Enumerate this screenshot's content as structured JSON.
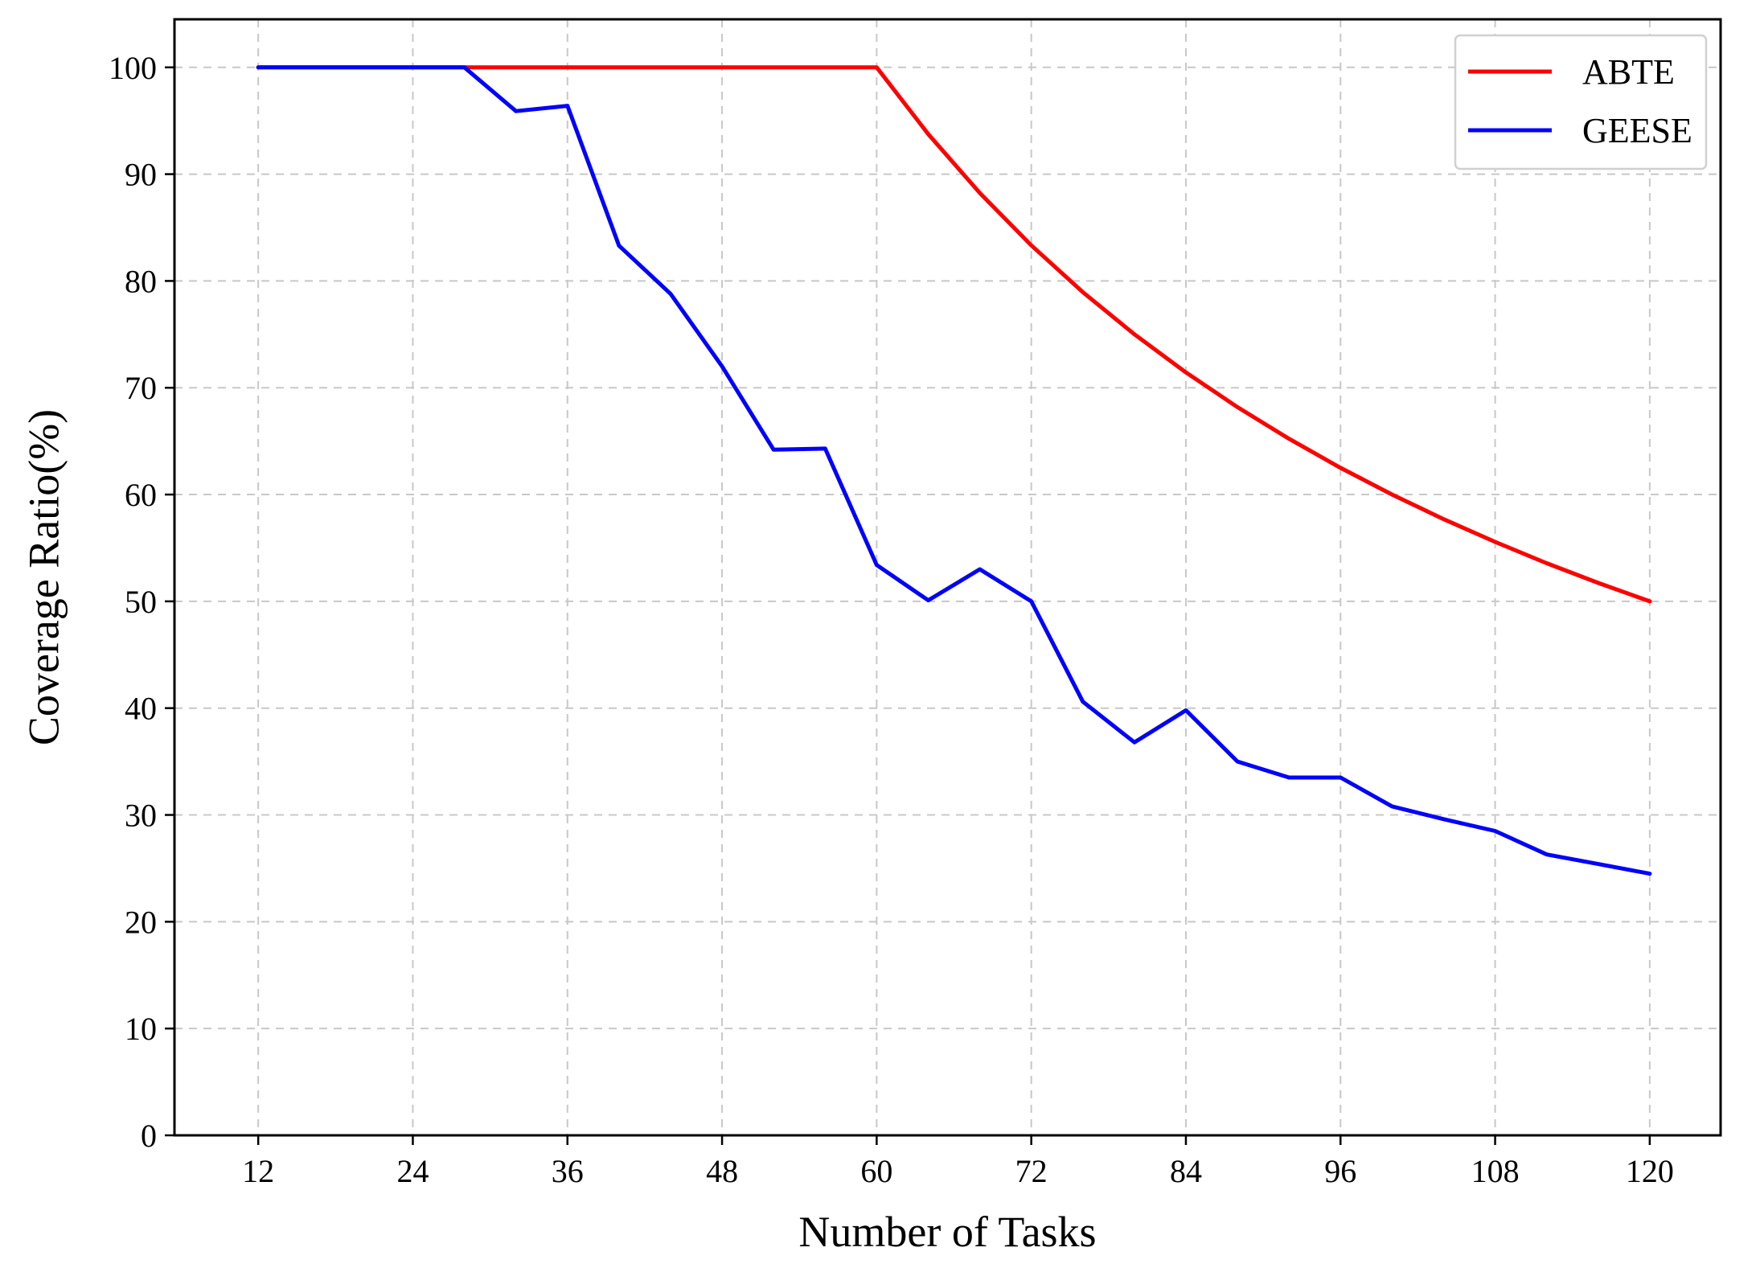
{
  "chart_data": {
    "type": "line",
    "title": "",
    "xlabel": "Number of Tasks",
    "ylabel": "Coverage Ratio(%)",
    "xlim": [
      5.5,
      125.5
    ],
    "ylim": [
      0,
      104.5
    ],
    "x_ticks": [
      12,
      24,
      36,
      48,
      60,
      72,
      84,
      96,
      108,
      120
    ],
    "y_ticks": [
      0,
      10,
      20,
      30,
      40,
      50,
      60,
      70,
      80,
      90,
      100
    ],
    "grid": true,
    "legend_position": "top-right",
    "series": [
      {
        "name": "ABTE",
        "color": "#ff0000",
        "x": [
          12,
          28,
          60,
          64,
          68,
          72,
          76,
          80,
          84,
          88,
          92,
          96,
          100,
          104,
          108,
          112,
          116,
          120
        ],
        "y": [
          100,
          100,
          100,
          93.75,
          88.24,
          83.33,
          78.95,
          75.0,
          71.43,
          68.18,
          65.22,
          62.5,
          60.0,
          57.69,
          55.56,
          53.57,
          51.72,
          50.0
        ]
      },
      {
        "name": "GEESE",
        "color": "#0000ff",
        "x": [
          12,
          28,
          32,
          36,
          40,
          44,
          48,
          52,
          56,
          60,
          64,
          68,
          72,
          76,
          80,
          84,
          88,
          92,
          96,
          100,
          104,
          108,
          112,
          116,
          120
        ],
        "y": [
          100,
          100,
          95.9,
          96.4,
          83.3,
          78.8,
          72.0,
          64.2,
          64.3,
          53.4,
          50.1,
          53.0,
          50.0,
          40.6,
          36.8,
          39.8,
          35.0,
          33.5,
          33.5,
          30.8,
          29.6,
          28.5,
          26.3,
          25.4,
          24.5
        ]
      }
    ]
  }
}
